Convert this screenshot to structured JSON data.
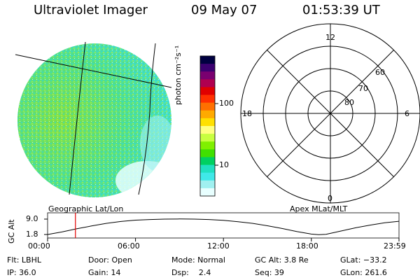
{
  "header": {
    "instrument": "Ultraviolet Imager",
    "date": "09 May 07",
    "time": "01:53:39 UT"
  },
  "colorbar": {
    "axis_label": "photon cm⁻²s⁻¹",
    "tick_labels": [
      "100",
      "10"
    ],
    "colors": [
      "#000040",
      "#3b0070",
      "#7a0070",
      "#b00050",
      "#e00000",
      "#ff3000",
      "#ff7000",
      "#ffaa00",
      "#ffe000",
      "#ffff80",
      "#c8ff40",
      "#80f000",
      "#40e000",
      "#00d060",
      "#20e0c0",
      "#40e8e8",
      "#a0f0f0",
      "#e8ffff"
    ]
  },
  "polar_plot": {
    "mlt_labels": {
      "top": "12",
      "left": "18",
      "right": "6",
      "bottom": "0"
    },
    "lat_labels": [
      "60",
      "70",
      "80"
    ]
  },
  "altitude_plot": {
    "ylabel": "GC Alt",
    "yticks": [
      "9.0",
      "1.8"
    ],
    "left_label": "Geographic Lat/Lon",
    "right_label": "Apex MLat/MLT",
    "xticks": [
      "00:00",
      "06:00",
      "12:00",
      "18:00",
      "23:59"
    ],
    "current_marker_hours": 1.9,
    "curve": [
      [
        0,
        1.8
      ],
      [
        1,
        3.0
      ],
      [
        2,
        4.5
      ],
      [
        3,
        5.8
      ],
      [
        4,
        7.0
      ],
      [
        5,
        7.9
      ],
      [
        6,
        8.5
      ],
      [
        7,
        8.8
      ],
      [
        8,
        9.0
      ],
      [
        9,
        9.05
      ],
      [
        10,
        9.0
      ],
      [
        11,
        8.8
      ],
      [
        12,
        8.4
      ],
      [
        13,
        7.8
      ],
      [
        14,
        7.0
      ],
      [
        15,
        5.9
      ],
      [
        16,
        4.6
      ],
      [
        17,
        3.2
      ],
      [
        18,
        2.0
      ],
      [
        18.5,
        1.7
      ],
      [
        19,
        1.9
      ],
      [
        20,
        3.4
      ],
      [
        21,
        4.9
      ],
      [
        22,
        6.2
      ],
      [
        23,
        7.3
      ],
      [
        23.98,
        8.0
      ]
    ]
  },
  "status": {
    "filter": "Flt: LBHL",
    "ip": "IP: 36.0",
    "door": "Door: Open",
    "gain": "Gain: 14",
    "mode": "Mode: Normal",
    "dsp": "Dsp:    2.4",
    "gc_alt": "GC Alt: 3.8 Re",
    "seq": "Seq: 39",
    "glat": "GLat: −33.2",
    "glon": "GLon: 261.6"
  }
}
